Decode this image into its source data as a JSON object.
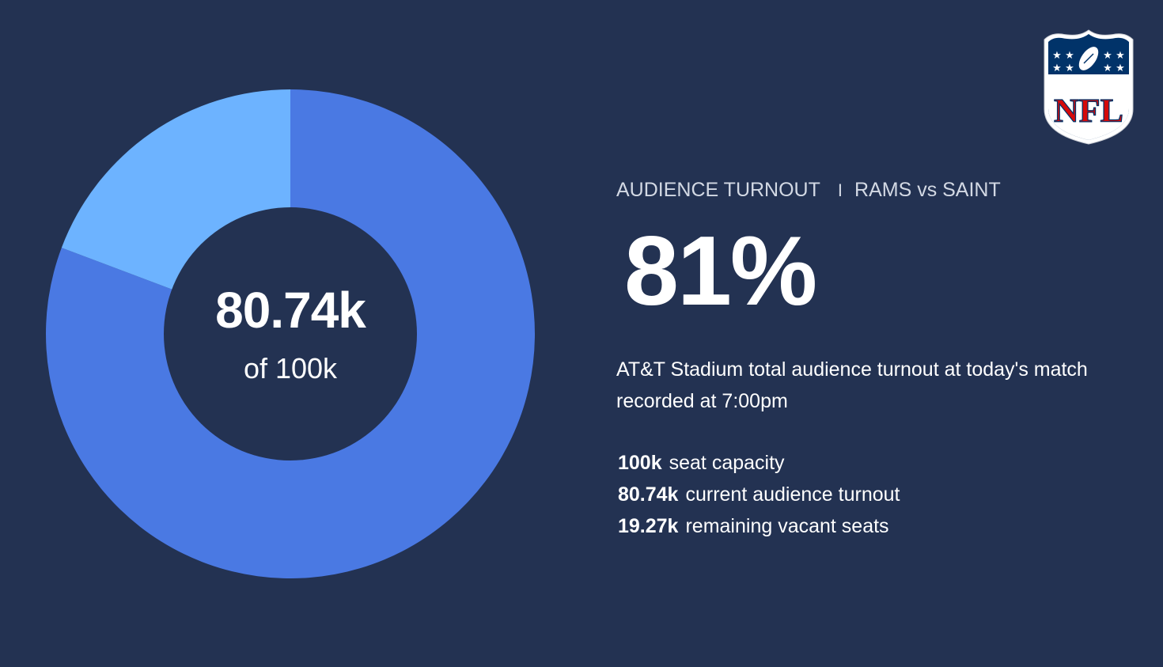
{
  "chart_data": {
    "type": "pie",
    "variant": "donut",
    "total": 100,
    "unit": "k",
    "slices": [
      {
        "label": "current audience turnout",
        "value": 80.74,
        "color": "#4a79e3"
      },
      {
        "label": "remaining vacant seats",
        "value": 19.27,
        "color": "#6db3ff"
      }
    ],
    "center_value": "80.74k",
    "center_sub": "of 100k"
  },
  "header": {
    "title": "AUDIENCE TURNOUT",
    "separator": "I",
    "matchup": "RAMS vs SAINT"
  },
  "percent": "81%",
  "description_line1": "AT&T Stadium total audience turnout at today's match",
  "description_line2": "recorded at 7:00pm",
  "stats": [
    {
      "value": "100k",
      "label": "seat capacity"
    },
    {
      "value": "80.74k",
      "label": "current audience turnout"
    },
    {
      "value": "19.27k",
      "label": "remaining vacant seats"
    }
  ],
  "logo": {
    "icon": "nfl-shield-icon",
    "text": "NFL",
    "colors": {
      "shield": "#013369",
      "text": "#d50a0a",
      "border": "#ffffff"
    }
  },
  "colors": {
    "background": "#233252",
    "turnout": "#4a79e3",
    "vacant": "#6db3ff"
  }
}
